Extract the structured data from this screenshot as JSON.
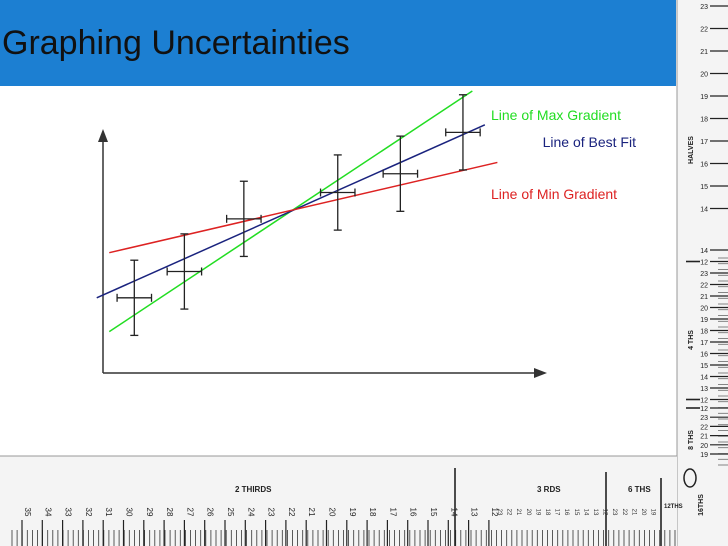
{
  "title": "Graphing Uncertainties",
  "chart_data": {
    "type": "scatter",
    "title": "",
    "xlabel": "",
    "ylabel": "",
    "grid": false,
    "points": [
      {
        "x": 1.0,
        "y": 2.0,
        "x_err": 0.55,
        "y_err": 1.0
      },
      {
        "x": 2.6,
        "y": 2.7,
        "x_err": 0.55,
        "y_err": 1.0
      },
      {
        "x": 4.5,
        "y": 4.1,
        "x_err": 0.55,
        "y_err": 1.0
      },
      {
        "x": 7.5,
        "y": 4.8,
        "x_err": 0.55,
        "y_err": 1.0
      },
      {
        "x": 9.5,
        "y": 5.3,
        "x_err": 0.55,
        "y_err": 1.0
      },
      {
        "x": 11.5,
        "y": 6.4,
        "x_err": 0.55,
        "y_err": 1.0
      }
    ],
    "lines": [
      {
        "name": "Line of Max Gradient",
        "color": "#22dd22",
        "x1": 0.2,
        "y1": 1.1,
        "x2": 11.8,
        "y2": 7.5
      },
      {
        "name": "Line of Best Fit",
        "color": "#1a237e",
        "x1": -0.2,
        "y1": 2.0,
        "x2": 12.2,
        "y2": 6.6
      },
      {
        "name": "Line of Min Gradient",
        "color": "#dd2222",
        "x1": 0.2,
        "y1": 3.2,
        "x2": 12.6,
        "y2": 5.6
      }
    ],
    "legend": {
      "placement": "top-right"
    }
  },
  "ruler_right": {
    "labels_upper": [
      "23",
      "22",
      "21",
      "20",
      "19",
      "18",
      "17",
      "16",
      "15",
      "14"
    ],
    "halves_label": "HALVES",
    "labels_mid": [
      "14",
      "12",
      "23",
      "22",
      "21",
      "20",
      "19",
      "18",
      "17",
      "16",
      "15",
      "14",
      "13",
      "12"
    ],
    "fourths_label": "4 THS",
    "labels_lower": [
      "12",
      "23",
      "22",
      "21",
      "20",
      "19"
    ],
    "eighths_label": "8 THS",
    "sixteenths_label": "16THS"
  },
  "ruler_bottom": {
    "labels": [
      "35",
      "34",
      "33",
      "32",
      "31",
      "30",
      "29",
      "28",
      "27",
      "26",
      "25",
      "24",
      "23",
      "22",
      "21",
      "20",
      "19",
      "18",
      "17",
      "16",
      "15",
      "14",
      "13",
      "12"
    ],
    "small_labels": [
      "23",
      "22",
      "21",
      "20",
      "19",
      "18",
      "17",
      "16",
      "15",
      "14",
      "13",
      "12",
      "23",
      "22",
      "21",
      "20",
      "19"
    ],
    "thirds_label": "2 THIRDS",
    "rds_label": "3 RDS",
    "sixths_label": "6 THS",
    "twelfths_label": "12THS"
  },
  "colors": {
    "header": "#1c7fd2",
    "max_gradient": "#22dd22",
    "best_fit": "#1a237e",
    "min_gradient": "#dd2222"
  }
}
